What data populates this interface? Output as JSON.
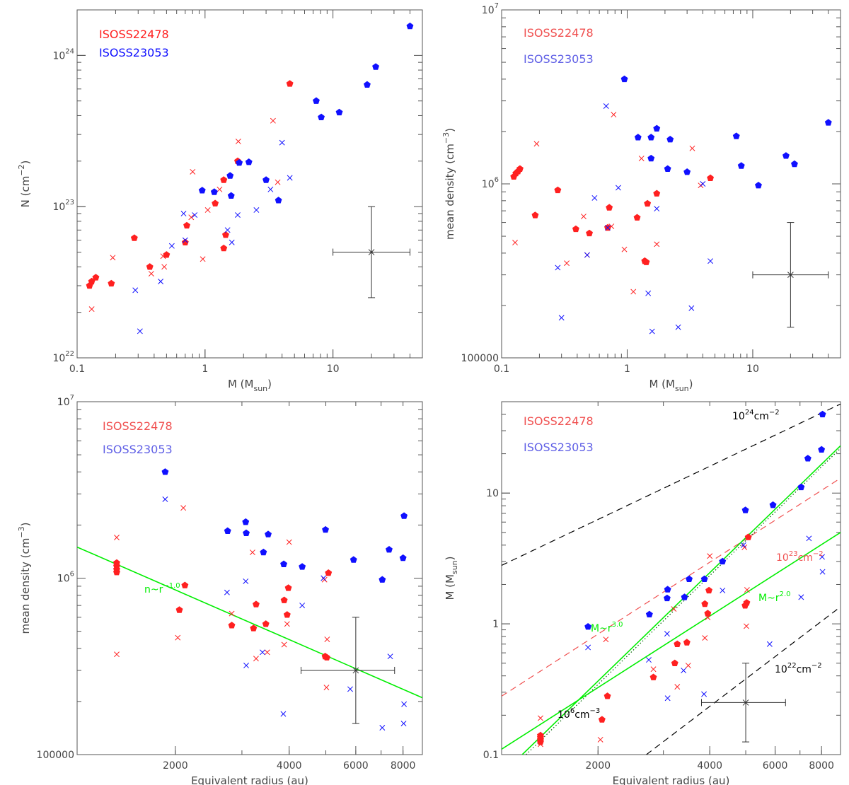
{
  "colors": {
    "red": "#ff2020",
    "red_light": "#f05050",
    "blue": "#1010ff",
    "blue_light": "#6060e6",
    "green": "#00ee00",
    "green_dark": "#006400",
    "black": "#000000",
    "gray": "#444444"
  },
  "chart_data": [
    {
      "type": "scatter",
      "xscale": "log",
      "yscale": "log",
      "xlim": [
        0.1,
        50
      ],
      "ylim": [
        1e+22,
        2e+24
      ],
      "xlabel": "M (M",
      "xlabel_sub": "sun",
      "xlabel_end": ")",
      "ylabel": "N (cm",
      "ylabel_sup": "−2",
      "ylabel_end": ")",
      "xticks": [
        {
          "v": 0.1,
          "t": "0.1"
        },
        {
          "v": 1,
          "t": "1"
        },
        {
          "v": 10,
          "t": "10"
        }
      ],
      "yticks": [
        {
          "v": 1e+22,
          "b": "10",
          "e": "22"
        },
        {
          "v": 1e+23,
          "b": "10",
          "e": "23"
        },
        {
          "v": 1e+24,
          "b": "10",
          "e": "24"
        }
      ],
      "legend": [
        {
          "name": "ISOSS22478",
          "color": "red"
        },
        {
          "name": "ISOSS23053",
          "color": "blue"
        }
      ],
      "series": [
        {
          "name": "ISOSS22478",
          "marker": "pentagon",
          "color": "red",
          "x": [
            0.125,
            0.13,
            0.14,
            0.185,
            0.28,
            0.37,
            0.5,
            0.7,
            0.72,
            1.2,
            1.4,
            1.45,
            1.4,
            1.8,
            4.6
          ],
          "y": [
            3e+22,
            3.2e+22,
            3.4e+22,
            3.1e+22,
            6.2e+22,
            4e+22,
            4.8e+22,
            5.8e+22,
            7.5e+22,
            1.05e+23,
            1.5e+23,
            6.5e+22,
            5.3e+22,
            2e+23,
            6.5e+23
          ]
        },
        {
          "name": "ISOSS22478",
          "marker": "cross",
          "color": "red",
          "x": [
            0.13,
            0.19,
            0.38,
            0.47,
            0.48,
            0.78,
            0.8,
            0.96,
            1.05,
            1.3,
            1.82,
            3.4,
            3.7
          ],
          "y": [
            2.1e+22,
            4.6e+22,
            3.6e+22,
            4.7e+22,
            4e+22,
            8.5e+22,
            1.7e+23,
            4.5e+22,
            9.5e+22,
            1.3e+23,
            2.7e+23,
            3.7e+23,
            1.45e+23
          ]
        },
        {
          "name": "ISOSS23053",
          "marker": "pentagon",
          "color": "blue",
          "x": [
            0.95,
            1.18,
            1.57,
            1.6,
            1.85,
            2.2,
            3.0,
            3.75,
            7.4,
            8.1,
            11.2,
            18.5,
            21.6,
            40
          ],
          "y": [
            1.28e+23,
            1.25e+23,
            1.6e+23,
            1.18e+23,
            1.95e+23,
            1.97e+23,
            1.5e+23,
            1.1e+23,
            5e+23,
            3.9e+23,
            4.2e+23,
            6.4e+23,
            8.4e+23,
            1.56e+24
          ]
        },
        {
          "name": "ISOSS23053",
          "marker": "cross",
          "color": "blue",
          "x": [
            0.285,
            0.31,
            0.45,
            0.55,
            0.68,
            0.7,
            0.83,
            1.5,
            1.62,
            1.8,
            2.52,
            3.25,
            4.0,
            4.6
          ],
          "y": [
            2.8e+22,
            1.5e+22,
            3.2e+22,
            5.5e+22,
            9e+22,
            6e+22,
            8.8e+22,
            7e+22,
            5.8e+22,
            8.8e+22,
            9.5e+22,
            1.3e+23,
            2.65e+23,
            1.55e+23
          ]
        }
      ],
      "errorbar": {
        "x": 20,
        "y": 5e+22,
        "xlo": 10,
        "xhi": 40,
        "ylo": 2.5e+22,
        "yhi": 1e+23
      }
    },
    {
      "type": "scatter",
      "xscale": "log",
      "yscale": "log",
      "xlim": [
        0.1,
        50
      ],
      "ylim": [
        100000.0,
        10000000.0
      ],
      "xlabel": "M (M",
      "xlabel_sub": "sun",
      "xlabel_end": ")",
      "ylabel": "mean density (cm",
      "ylabel_sup": "−3",
      "ylabel_end": ")",
      "xticks": [
        {
          "v": 0.1,
          "t": "0.1"
        },
        {
          "v": 1,
          "t": "1"
        },
        {
          "v": 10,
          "t": "10"
        }
      ],
      "yticks": [
        {
          "v": 100000.0,
          "t": "100000"
        },
        {
          "v": 1000000.0,
          "b": "10",
          "e": "6"
        },
        {
          "v": 10000000.0,
          "b": "10",
          "e": "7"
        }
      ],
      "legend": [
        {
          "name": "ISOSS22478",
          "color": "red_light"
        },
        {
          "name": "ISOSS23053",
          "color": "blue_light"
        }
      ],
      "series": [
        {
          "name": "ISOSS22478",
          "marker": "pentagon",
          "color": "red",
          "x": [
            0.125,
            0.13,
            0.135,
            0.14,
            0.185,
            0.28,
            0.39,
            0.5,
            0.7,
            0.72,
            1.2,
            1.38,
            1.42,
            1.45,
            1.72,
            4.6
          ],
          "y": [
            1100000.0,
            1150000.0,
            1180000.0,
            1220000.0,
            660000.0,
            920000.0,
            550000.0,
            520000.0,
            560000.0,
            730000.0,
            640000.0,
            360000.0,
            355000.0,
            770000.0,
            880000.0,
            1080000.0
          ]
        },
        {
          "name": "ISOSS22478",
          "marker": "cross",
          "color": "red",
          "x": [
            0.128,
            0.19,
            0.33,
            0.45,
            0.48,
            0.75,
            0.78,
            0.95,
            1.12,
            1.3,
            1.72,
            3.3,
            3.85
          ],
          "y": [
            460000.0,
            1700000.0,
            350000.0,
            650000.0,
            390000.0,
            570000.0,
            2500000.0,
            420000.0,
            240000.0,
            1400000.0,
            450000.0,
            1600000.0,
            980000.0
          ]
        },
        {
          "name": "ISOSS23053",
          "marker": "pentagon",
          "color": "blue",
          "x": [
            0.95,
            1.22,
            1.55,
            1.55,
            1.72,
            2.1,
            2.2,
            3.0,
            7.4,
            8.1,
            11.1,
            18.4,
            21.5,
            40
          ],
          "y": [
            4000000.0,
            1850000.0,
            1400000.0,
            1850000.0,
            2080000.0,
            1220000.0,
            1800000.0,
            1170000.0,
            1880000.0,
            1270000.0,
            980000.0,
            1450000.0,
            1300000.0,
            2250000.0
          ]
        },
        {
          "name": "ISOSS23053",
          "marker": "cross",
          "color": "blue",
          "x": [
            0.28,
            0.3,
            0.48,
            0.55,
            0.68,
            0.7,
            0.85,
            1.47,
            1.58,
            1.72,
            2.55,
            3.25,
            4.0,
            4.6
          ],
          "y": [
            330000.0,
            170000.0,
            390000.0,
            830000.0,
            2800000.0,
            560000.0,
            950000.0,
            235000.0,
            142000.0,
            720000.0,
            150000.0,
            193000.0,
            1000000.0,
            360000.0
          ]
        }
      ],
      "errorbar": {
        "x": 20,
        "y": 300000.0,
        "xlo": 10,
        "xhi": 40,
        "ylo": 150000.0,
        "yhi": 600000.0
      }
    },
    {
      "type": "scatter",
      "xscale": "log",
      "yscale": "log",
      "xlim": [
        1100,
        9000
      ],
      "ylim": [
        100000.0,
        10000000.0
      ],
      "xlabel": "Equivalent radius (au)",
      "ylabel": "mean density (cm",
      "ylabel_sup": "−3",
      "ylabel_end": ")",
      "xticks": [
        {
          "v": 2000,
          "t": "2000"
        },
        {
          "v": 4000,
          "t": "4000"
        },
        {
          "v": 6000,
          "t": "6000"
        },
        {
          "v": 8000,
          "t": "8000"
        }
      ],
      "yticks": [
        {
          "v": 100000.0,
          "t": "100000"
        },
        {
          "v": 1000000.0,
          "b": "10",
          "e": "6"
        },
        {
          "v": 10000000.0,
          "b": "10",
          "e": "7"
        }
      ],
      "legend": [
        {
          "name": "ISOSS22478",
          "color": "red_light"
        },
        {
          "name": "ISOSS23053",
          "color": "blue_light"
        }
      ],
      "series": [
        {
          "name": "ISOSS22478",
          "marker": "pentagon",
          "color": "red",
          "x": [
            1400,
            1400,
            1400,
            1400,
            2050,
            2120,
            2820,
            3220,
            3270,
            3470,
            3880,
            3950,
            3980,
            4980,
            5030,
            5080
          ],
          "y": [
            1080000.0,
            1120000.0,
            1170000.0,
            1220000.0,
            660000.0,
            910000.0,
            540000.0,
            520000.0,
            710000.0,
            550000.0,
            750000.0,
            620000.0,
            880000.0,
            360000.0,
            355000.0,
            1070000.0
          ]
        },
        {
          "name": "ISOSS22478",
          "marker": "cross",
          "color": "red",
          "x": [
            1400,
            1400,
            2030,
            2100,
            2820,
            3200,
            3270,
            3500,
            3880,
            3950,
            4000,
            4960,
            5020,
            5040
          ],
          "y": [
            1700000.0,
            370000.0,
            460000.0,
            2500000.0,
            630000.0,
            1400000.0,
            350000.0,
            380000.0,
            420000.0,
            550000.0,
            1600000.0,
            980000.0,
            240000.0,
            450000.0
          ]
        },
        {
          "name": "ISOSS23053",
          "marker": "pentagon",
          "color": "blue",
          "x": [
            1880,
            2750,
            3070,
            3080,
            3420,
            3520,
            3870,
            4330,
            4990,
            5920,
            7050,
            7350,
            8000,
            8050
          ],
          "y": [
            4000000.0,
            1850000.0,
            2080000.0,
            1800000.0,
            1400000.0,
            1770000.0,
            1200000.0,
            1160000.0,
            1880000.0,
            1270000.0,
            980000.0,
            1450000.0,
            1300000.0,
            2250000.0
          ]
        },
        {
          "name": "ISOSS23053",
          "marker": "cross",
          "color": "blue",
          "x": [
            1880,
            2740,
            3070,
            3080,
            3400,
            3860,
            4330,
            4930,
            5800,
            7050,
            7400,
            8030,
            8050
          ],
          "y": [
            2800000.0,
            830000.0,
            960000.0,
            320000.0,
            380000.0,
            170000.0,
            700000.0,
            1000000.0,
            235000.0,
            142000.0,
            360000.0,
            150000.0,
            193000.0
          ]
        }
      ],
      "lines": [
        {
          "label": "n~r",
          "label_sup": "−1.0",
          "color": "green",
          "dash": false,
          "x": [
            1100,
            9000
          ],
          "y": [
            1500000.0,
            210000.0
          ]
        }
      ],
      "errorbar": {
        "x": 6000,
        "y": 300000.0,
        "xlo": 4300,
        "xhi": 7600,
        "ylo": 150000.0,
        "yhi": 600000.0
      }
    },
    {
      "type": "scatter",
      "xscale": "log",
      "yscale": "log",
      "xlim": [
        1100,
        9000
      ],
      "ylim": [
        0.1,
        50
      ],
      "xlabel": "Equivalent radius (au)",
      "ylabel": "M (M",
      "ylabel_sub": "sun",
      "ylabel_end": ")",
      "xticks": [
        {
          "v": 2000,
          "t": "2000"
        },
        {
          "v": 4000,
          "t": "4000"
        },
        {
          "v": 6000,
          "t": "6000"
        },
        {
          "v": 8000,
          "t": "8000"
        }
      ],
      "yticks": [
        {
          "v": 0.1,
          "t": "0.1"
        },
        {
          "v": 1,
          "t": "1"
        },
        {
          "v": 10,
          "t": "10"
        }
      ],
      "legend": [
        {
          "name": "ISOSS22478",
          "color": "red_light"
        },
        {
          "name": "ISOSS23053",
          "color": "blue_light"
        }
      ],
      "series": [
        {
          "name": "ISOSS22478",
          "marker": "pentagon",
          "color": "red",
          "x": [
            1400,
            1400,
            1400,
            1400,
            2050,
            2120,
            2820,
            3220,
            3270,
            3470,
            3880,
            3950,
            3980,
            4980,
            5030,
            5080
          ],
          "y": [
            0.125,
            0.13,
            0.135,
            0.14,
            0.185,
            0.28,
            0.39,
            0.5,
            0.7,
            0.72,
            1.42,
            1.2,
            1.8,
            1.38,
            1.45,
            4.6
          ]
        },
        {
          "name": "ISOSS22478",
          "marker": "cross",
          "color": "red",
          "x": [
            1400,
            1400,
            2030,
            2100,
            2820,
            3200,
            3270,
            3500,
            3880,
            3950,
            4000,
            4960,
            5020,
            5040
          ],
          "y": [
            0.19,
            0.12,
            0.13,
            0.76,
            0.45,
            1.3,
            0.33,
            0.48,
            0.78,
            1.12,
            3.3,
            3.85,
            0.96,
            1.82
          ]
        },
        {
          "name": "ISOSS23053",
          "marker": "pentagon",
          "color": "blue",
          "x": [
            1880,
            2750,
            3070,
            3080,
            3420,
            3520,
            3870,
            4330,
            4990,
            5920,
            7050,
            7350,
            8000,
            8050
          ],
          "y": [
            0.95,
            1.18,
            1.57,
            1.83,
            1.6,
            2.2,
            2.2,
            3.0,
            7.4,
            8.1,
            11.1,
            18.4,
            21.5,
            40
          ]
        },
        {
          "name": "ISOSS23053",
          "marker": "cross",
          "color": "blue",
          "x": [
            1880,
            2740,
            3070,
            3080,
            3400,
            3860,
            4330,
            4930,
            5800,
            7050,
            7400,
            8030,
            8050
          ],
          "y": [
            0.66,
            0.53,
            0.84,
            0.27,
            0.44,
            0.29,
            1.8,
            4.0,
            0.7,
            1.6,
            4.5,
            3.25,
            2.5
          ]
        }
      ],
      "lines": [
        {
          "label": "10",
          "label_sup": "24",
          "label_end": "cm",
          "label_sup2": "−2",
          "color": "black",
          "dash": "dash",
          "x": [
            1100,
            9000
          ],
          "y": [
            2.8,
            48
          ]
        },
        {
          "label": "10",
          "label_sup": "23",
          "label_end": "cm",
          "label_sup2": "−2",
          "color": "red_light",
          "dash": "dash",
          "x": [
            1100,
            9000
          ],
          "y": [
            0.28,
            13
          ]
        },
        {
          "label": "10",
          "label_sup": "22",
          "label_end": "cm",
          "label_sup2": "−2",
          "color": "black",
          "dash": "dash",
          "x": [
            2700,
            9000
          ],
          "y": [
            0.1,
            1.35
          ]
        },
        {
          "label": "10",
          "label_sup": "6",
          "label_end": "cm",
          "label_sup2": "−3",
          "color": "green_dark",
          "dash": "dot",
          "x": [
            1280,
            9000
          ],
          "y": [
            0.1,
            22
          ]
        },
        {
          "label": "M~r",
          "label_sup": "3.0",
          "color": "green",
          "dash": false,
          "x": [
            1250,
            9000
          ],
          "y": [
            0.1,
            23
          ]
        },
        {
          "label": "M~r",
          "label_sup": "2.0",
          "color": "green",
          "dash": false,
          "x": [
            1100,
            9000
          ],
          "y": [
            0.11,
            5.0
          ]
        }
      ],
      "errorbar": {
        "x": 5000,
        "y": 0.25,
        "xlo": 3800,
        "xhi": 6400,
        "ylo": 0.125,
        "yhi": 0.5
      }
    }
  ]
}
